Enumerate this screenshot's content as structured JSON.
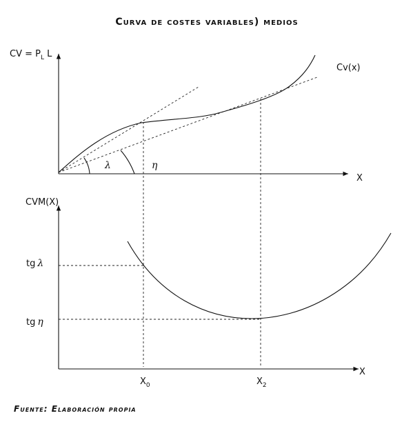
{
  "title": "Curva de costes variables) medios",
  "top_panel": {
    "y_axis_label": {
      "main": "CV = P",
      "subscript": "L",
      "rest": " L"
    },
    "curve_label": "Cv(x)",
    "x_axis_label": "X",
    "angle_1": "λ",
    "angle_2": "η"
  },
  "bottom_panel": {
    "y_axis_label": "CVM(X)",
    "tick_1": {
      "prefix": "tg",
      "symbol": "λ"
    },
    "tick_2": {
      "prefix": "tg",
      "symbol": "η"
    },
    "x_axis_label": "X",
    "x_tick_1": {
      "main": "X",
      "subscript": "0"
    },
    "x_tick_2": {
      "main": "X",
      "subscript": "2"
    }
  },
  "source": "Fuente: Elaboración propia"
}
